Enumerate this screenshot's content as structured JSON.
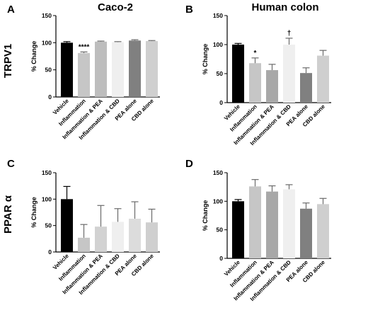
{
  "figure": {
    "column_titles": [
      "Caco-2",
      "Human colon"
    ],
    "row_labels": [
      "TRPV1",
      "PPAR α"
    ]
  },
  "chart_data": [
    {
      "panel": "A",
      "type": "bar",
      "title": "Caco-2",
      "row_label": "TRPV1",
      "ylabel": "% Change",
      "ylim": [
        0,
        150
      ],
      "yticks": [
        0,
        50,
        100,
        150
      ],
      "categories": [
        "Vehicle",
        "Inflammation",
        "Inflammation & PEA",
        "Inflammation & CBD",
        "PEA alone",
        "CBD alone"
      ],
      "values": [
        100,
        81,
        102,
        101,
        104,
        103
      ],
      "errors": [
        2,
        2,
        1,
        1,
        1.5,
        1
      ],
      "colors": [
        "#000000",
        "#c6c6c6",
        "#bdbdbd",
        "#efefef",
        "#808080",
        "#cfcfcf"
      ],
      "annotations": [
        "",
        "****",
        "",
        "",
        "",
        ""
      ],
      "grid": false
    },
    {
      "panel": "B",
      "type": "bar",
      "title": "Human colon",
      "ylabel": "% Change",
      "ylim": [
        0,
        150
      ],
      "yticks": [
        0,
        50,
        100,
        150
      ],
      "categories": [
        "Vehicle",
        "Inflammation",
        "Inflammation & PEA",
        "Inflammation & CBD",
        "PEA alone",
        "CBD alone"
      ],
      "values": [
        100,
        68,
        56,
        100,
        51,
        81
      ],
      "errors": [
        2,
        9,
        10,
        11,
        9,
        9
      ],
      "colors": [
        "#000000",
        "#c6c6c6",
        "#a8a8a8",
        "#efefef",
        "#808080",
        "#cfcfcf"
      ],
      "annotations": [
        "",
        "*",
        "",
        "†",
        "",
        ""
      ],
      "grid": false
    },
    {
      "panel": "C",
      "type": "bar",
      "row_label": "PPAR α",
      "ylabel": "% Change",
      "ylim": [
        0,
        150
      ],
      "yticks": [
        0,
        50,
        100,
        150
      ],
      "categories": [
        "Vehicle",
        "Inflammation",
        "Inflammation & PEA",
        "Inflammation & CBD",
        "PEA alone",
        "CBD alone"
      ],
      "values": [
        100,
        27,
        48,
        57,
        63,
        56
      ],
      "errors": [
        24,
        25,
        40,
        25,
        32,
        25
      ],
      "colors": [
        "#000000",
        "#c6c6c6",
        "#d2d2d2",
        "#efefef",
        "#dcdcdc",
        "#cfcfcf"
      ],
      "annotations": [
        "",
        "",
        "",
        "",
        "",
        ""
      ],
      "grid": false
    },
    {
      "panel": "D",
      "type": "bar",
      "ylabel": "% Change",
      "ylim": [
        0,
        150
      ],
      "yticks": [
        0,
        50,
        100,
        150
      ],
      "categories": [
        "Vehicle",
        "Inflammation",
        "Inflammation & PEA",
        "Inflammation & CBD",
        "PEA alone",
        "CBD alone"
      ],
      "values": [
        100,
        126,
        117,
        121,
        87,
        95
      ],
      "errors": [
        3,
        12,
        10,
        8,
        10,
        10
      ],
      "colors": [
        "#000000",
        "#c6c6c6",
        "#a8a8a8",
        "#efefef",
        "#808080",
        "#cfcfcf"
      ],
      "annotations": [
        "",
        "",
        "",
        "",
        "",
        ""
      ],
      "grid": false
    }
  ]
}
